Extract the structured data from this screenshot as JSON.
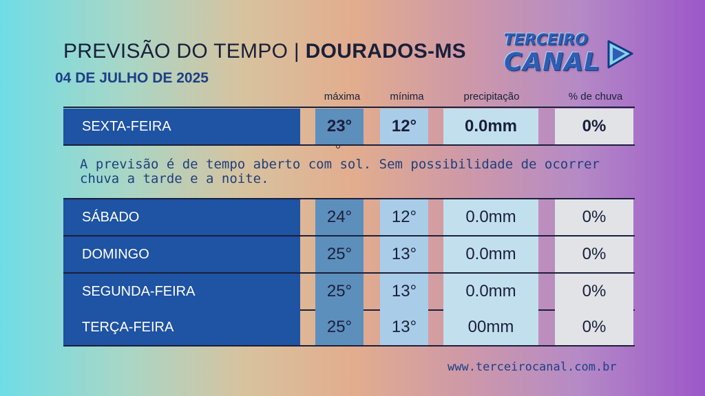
{
  "header": {
    "title_prefix": "PREVISÃO DO TEMPO | ",
    "title_city": "DOURADOS-MS",
    "date": "04 DE JULHO DE 2025"
  },
  "logo": {
    "line1": "TERCEIRO",
    "line2": "CANAL",
    "icon": "play-icon"
  },
  "columns": {
    "max": "máxima",
    "min": "mínima",
    "precip": "precipitação",
    "rain_pct": "% de chuva"
  },
  "today": {
    "day": "SEXTA-FEIRA",
    "max": "23°",
    "min": "12°",
    "precip": "0.0mm",
    "rain_pct": "0%"
  },
  "description": "A previsão é de tempo aberto com sol. Sem possibilidade de ocorrer chuva a tarde e a noite.",
  "forecast": [
    {
      "day": "SÁBADO",
      "max": "24°",
      "min": "12°",
      "precip": "0.0mm",
      "rain_pct": "0%"
    },
    {
      "day": "DOMINGO",
      "max": "25°",
      "min": "13°",
      "precip": "0.0mm",
      "rain_pct": "0%"
    },
    {
      "day": "SEGUNDA-FEIRA",
      "max": "25°",
      "min": "13°",
      "precip": "0.0mm",
      "rain_pct": "0%"
    },
    {
      "day": "TERÇA-FEIRA",
      "max": "25°",
      "min": "13°",
      "precip": "00mm",
      "rain_pct": "0%"
    }
  ],
  "footer": {
    "url": "www.terceirocanal.com.br"
  },
  "colors": {
    "day_bg": "#1f53a3",
    "max_bg": "#5d8fbd",
    "min_bg": "#a9cde9",
    "precip_bg": "#c2dfee",
    "pct_bg": "#e1e3e6",
    "accent": "#1d3f86"
  }
}
